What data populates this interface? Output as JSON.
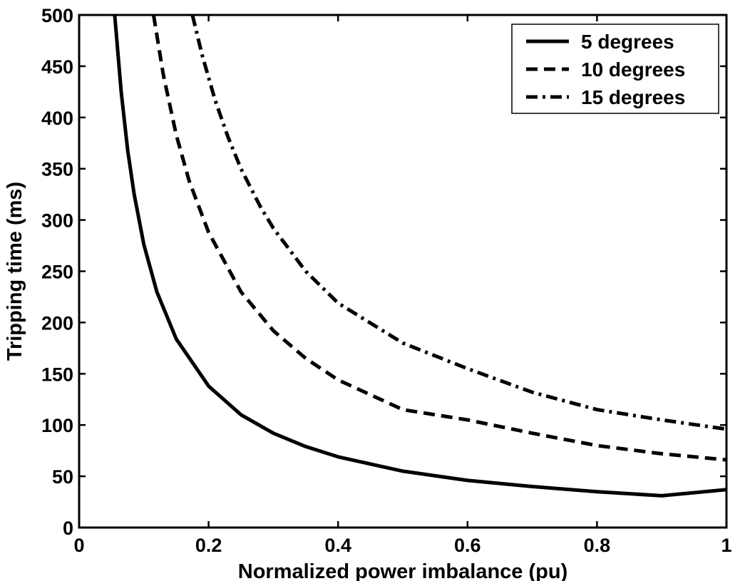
{
  "chart_data": {
    "type": "line",
    "title": "",
    "xlabel": "Normalized power imbalance (pu)",
    "ylabel": "Tripping time (ms)",
    "xlim": [
      0,
      1
    ],
    "ylim": [
      0,
      500
    ],
    "x_ticks": [
      0,
      0.2,
      0.4,
      0.6,
      0.8,
      1
    ],
    "x_tick_labels": [
      "0",
      "0.2",
      "0.4",
      "0.6",
      "0.8",
      "1"
    ],
    "y_ticks": [
      0,
      50,
      100,
      150,
      200,
      250,
      300,
      350,
      400,
      450,
      500
    ],
    "y_tick_labels": [
      "0",
      "50",
      "100",
      "150",
      "200",
      "250",
      "300",
      "350",
      "400",
      "450",
      "500"
    ],
    "grid": false,
    "legend_position": "top-right",
    "series": [
      {
        "name": "5 degrees",
        "style": "solid",
        "x": [
          0.055,
          0.065,
          0.075,
          0.085,
          0.1,
          0.12,
          0.15,
          0.2,
          0.25,
          0.3,
          0.35,
          0.4,
          0.5,
          0.6,
          0.7,
          0.8,
          0.9,
          1.0
        ],
        "y": [
          500,
          425,
          368,
          325,
          276,
          230,
          184,
          138,
          110,
          92,
          79,
          69,
          55,
          46,
          40,
          35,
          31,
          37
        ]
      },
      {
        "name": "10 degrees",
        "style": "dashed",
        "x": [
          0.115,
          0.13,
          0.15,
          0.17,
          0.2,
          0.25,
          0.3,
          0.35,
          0.4,
          0.5,
          0.6,
          0.7,
          0.8,
          0.9,
          1.0
        ],
        "y": [
          500,
          442,
          383,
          338,
          288,
          230,
          192,
          165,
          144,
          115,
          105,
          92,
          80,
          72,
          66
        ]
      },
      {
        "name": "15 degrees",
        "style": "dash-dot",
        "x": [
          0.175,
          0.19,
          0.21,
          0.23,
          0.25,
          0.28,
          0.3,
          0.35,
          0.4,
          0.5,
          0.6,
          0.7,
          0.8,
          0.9,
          1.0
        ],
        "y": [
          500,
          461,
          417,
          381,
          350,
          313,
          292,
          250,
          219,
          180,
          155,
          132,
          115,
          105,
          96
        ]
      }
    ]
  }
}
